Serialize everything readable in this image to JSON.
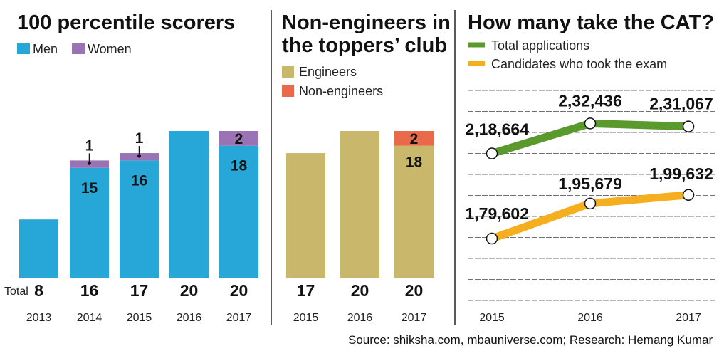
{
  "colors": {
    "men": "#27A7D8",
    "women": "#9A73B5",
    "engineers": "#C9B86C",
    "non_engineers": "#E86A4A",
    "total_applications": "#5A9A2C",
    "took_exam": "#F5AE1D",
    "divider": "#222222",
    "grid": "#444444"
  },
  "panels": {
    "p1": {
      "title": "100 percentile scorers",
      "legend": [
        "Men",
        "Women"
      ],
      "total_label": "Total"
    },
    "p2": {
      "title_line1": "Non-engineers in",
      "title_line2": "the toppers’ club",
      "legend": [
        "Engineers",
        "Non-engineers"
      ]
    },
    "p3": {
      "title": "How many take the CAT?",
      "legend": [
        "Total applications",
        "Candidates who took the exam"
      ]
    }
  },
  "source": "Source: shiksha.com, mbauniverse.com; Research: Hemang Kumar",
  "chart_data": [
    {
      "type": "bar",
      "stacked": true,
      "title": "100 percentile scorers",
      "categories": [
        "2013",
        "2014",
        "2015",
        "2016",
        "2017"
      ],
      "series": [
        {
          "name": "Men",
          "values": [
            8,
            15,
            16,
            20,
            18
          ],
          "labels": [
            "",
            "15",
            "16",
            "",
            "18"
          ]
        },
        {
          "name": "Women",
          "values": [
            0,
            1,
            1,
            0,
            2
          ],
          "labels": [
            "",
            "1",
            "1",
            "",
            "2"
          ]
        }
      ],
      "totals": [
        "8",
        "16",
        "17",
        "20",
        "20"
      ],
      "ylim": [
        0,
        20
      ]
    },
    {
      "type": "bar",
      "stacked": true,
      "title": "Non-engineers in the toppers’ club",
      "categories": [
        "2015",
        "2016",
        "2017"
      ],
      "series": [
        {
          "name": "Engineers",
          "values": [
            17,
            20,
            18
          ],
          "labels": [
            "",
            "",
            "18"
          ]
        },
        {
          "name": "Non-engineers",
          "values": [
            0,
            0,
            2
          ],
          "labels": [
            "",
            "",
            "2"
          ]
        }
      ],
      "totals": [
        "17",
        "20",
        "20"
      ],
      "ylim": [
        0,
        20
      ]
    },
    {
      "type": "line",
      "title": "How many take the CAT?",
      "categories": [
        "2015",
        "2016",
        "2017"
      ],
      "series": [
        {
          "name": "Total applications",
          "values": [
            218664,
            232436,
            231067
          ],
          "labels": [
            "2,18,664",
            "2,32,436",
            "2,31,067"
          ]
        },
        {
          "name": "Candidates who took the exam",
          "values": [
            179602,
            195679,
            199632
          ],
          "labels": [
            "1,79,602",
            "1,95,679",
            "1,99,632"
          ]
        }
      ],
      "ylim": [
        160000,
        245000
      ],
      "grid": true
    }
  ]
}
